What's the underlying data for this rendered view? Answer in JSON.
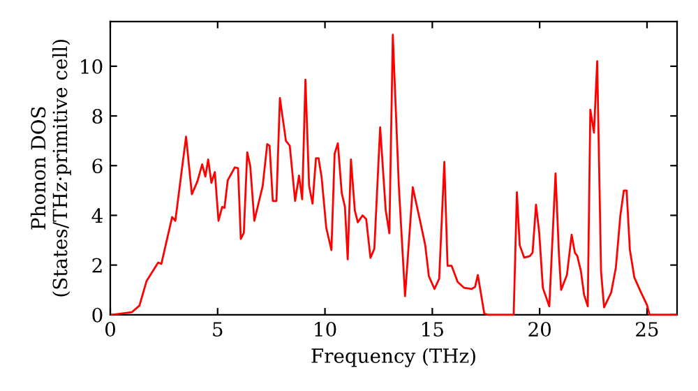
{
  "chart_data": {
    "type": "line",
    "xlabel": "Frequency (THz)",
    "ylabel": "Phonon DOS\n(States/THz·primitive cell)",
    "xlim": [
      0,
      26.4
    ],
    "ylim": [
      0,
      11.8
    ],
    "xticks": [
      0,
      5,
      10,
      15,
      20,
      25
    ],
    "yticks": [
      0,
      2,
      4,
      6,
      8,
      10
    ],
    "grid": false,
    "marker": "none",
    "line_style": "solid",
    "series": [
      {
        "color": "#ff0000",
        "x": [
          0.07,
          1.0,
          1.36,
          1.69,
          2.23,
          2.38,
          2.88,
          3.03,
          3.53,
          3.8,
          4.06,
          4.28,
          4.43,
          4.56,
          4.71,
          4.87,
          5.04,
          5.21,
          5.32,
          5.47,
          5.8,
          5.95,
          6.08,
          6.22,
          6.38,
          6.52,
          6.71,
          7.1,
          7.31,
          7.42,
          7.57,
          7.74,
          7.9,
          8.18,
          8.36,
          8.61,
          8.79,
          8.94,
          9.09,
          9.26,
          9.42,
          9.58,
          9.7,
          9.84,
          10.06,
          10.3,
          10.45,
          10.6,
          10.78,
          10.93,
          11.06,
          11.21,
          11.39,
          11.53,
          11.75,
          11.92,
          12.12,
          12.3,
          12.57,
          12.83,
          13.0,
          13.16,
          13.44,
          13.73,
          14.09,
          14.45,
          14.67,
          14.84,
          15.1,
          15.32,
          15.56,
          15.71,
          15.9,
          16.18,
          16.47,
          16.84,
          16.99,
          17.12,
          17.42,
          17.58,
          18.79,
          18.94,
          19.07,
          19.28,
          19.54,
          19.67,
          19.83,
          19.98,
          20.15,
          20.45,
          20.74,
          20.9,
          21.0,
          21.27,
          21.49,
          21.64,
          21.75,
          21.92,
          22.07,
          22.24,
          22.36,
          22.53,
          22.68,
          22.86,
          23.0,
          23.33,
          23.55,
          23.76,
          23.92,
          24.05,
          24.2,
          24.41,
          24.7,
          25.0,
          25.12,
          26.36
        ],
        "values": [
          0,
          0.1,
          0.37,
          1.36,
          2.1,
          2.05,
          3.93,
          3.78,
          7.17,
          4.85,
          5.37,
          6.05,
          5.56,
          6.25,
          5.31,
          5.74,
          3.78,
          4.34,
          4.3,
          5.41,
          5.93,
          5.9,
          3.05,
          3.3,
          6.54,
          5.98,
          3.78,
          5.19,
          6.87,
          6.8,
          4.58,
          4.58,
          8.72,
          7.0,
          6.8,
          4.58,
          5.6,
          4.65,
          9.46,
          5.19,
          4.47,
          6.3,
          6.3,
          5.56,
          3.5,
          2.6,
          6.48,
          6.9,
          4.9,
          4.34,
          2.23,
          6.25,
          4.2,
          3.72,
          4.0,
          3.85,
          2.29,
          2.66,
          7.54,
          4.2,
          3.28,
          11.27,
          5.19,
          0.75,
          5.13,
          3.7,
          2.8,
          1.55,
          1.04,
          1.45,
          6.15,
          1.97,
          1.97,
          1.32,
          1.09,
          1.04,
          1.12,
          1.6,
          0.05,
          0,
          0,
          4.93,
          2.8,
          2.3,
          2.36,
          2.5,
          4.43,
          3.3,
          1.08,
          0.34,
          5.69,
          2.4,
          1.0,
          1.6,
          3.22,
          2.5,
          2.37,
          1.76,
          0.8,
          0.34,
          8.25,
          7.33,
          10.2,
          1.73,
          0.3,
          0.89,
          1.9,
          4.0,
          5.0,
          5.0,
          2.63,
          1.5,
          0.94,
          0.39,
          0,
          0
        ]
      }
    ]
  }
}
